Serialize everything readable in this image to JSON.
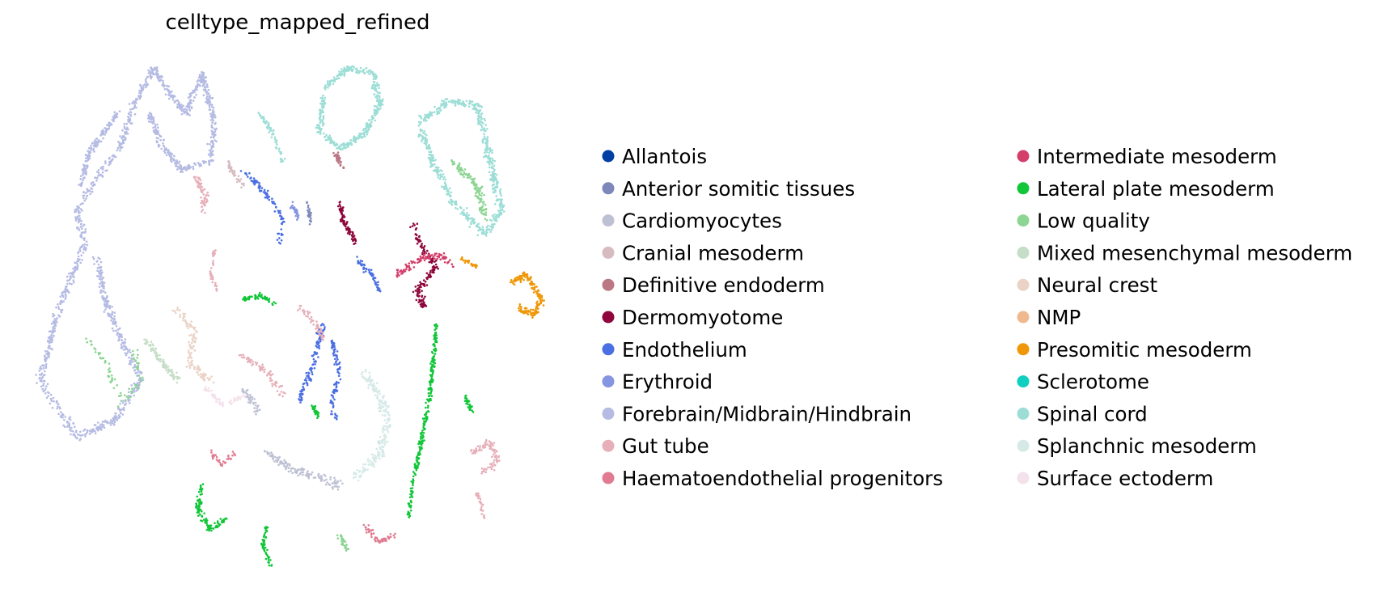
{
  "chart_data": {
    "type": "scatter",
    "title": "celltype_mapped_refined",
    "xlabel": "",
    "ylabel": "",
    "axes_visible": false,
    "grid": false,
    "legend_placement": "right",
    "legend_columns": 2,
    "categories": [
      {
        "name": "Allantois",
        "color": "#023fa5"
      },
      {
        "name": "Anterior somitic tissues",
        "color": "#7d87b9"
      },
      {
        "name": "Cardiomyocytes",
        "color": "#bec1d4"
      },
      {
        "name": "Cranial mesoderm",
        "color": "#d6bcc0"
      },
      {
        "name": "Definitive endoderm",
        "color": "#bb7784"
      },
      {
        "name": "Dermomyotome",
        "color": "#8e063b"
      },
      {
        "name": "Endothelium",
        "color": "#4a6fe3"
      },
      {
        "name": "Erythroid",
        "color": "#8595e1"
      },
      {
        "name": "Forebrain/Midbrain/Hindbrain",
        "color": "#b5bbe3"
      },
      {
        "name": "Gut tube",
        "color": "#e6afb9"
      },
      {
        "name": "Haematoendothelial progenitors",
        "color": "#e07b91"
      },
      {
        "name": "Intermediate mesoderm",
        "color": "#d33f6a"
      },
      {
        "name": "Lateral plate mesoderm",
        "color": "#11c638"
      },
      {
        "name": "Low quality",
        "color": "#8dd593"
      },
      {
        "name": "Mixed mesenchymal mesoderm",
        "color": "#c6dec7"
      },
      {
        "name": "Neural crest",
        "color": "#ead3c6"
      },
      {
        "name": "NMP",
        "color": "#f0b98d"
      },
      {
        "name": "Presomitic mesoderm",
        "color": "#ef9708"
      },
      {
        "name": "Sclerotome",
        "color": "#0fcfc0"
      },
      {
        "name": "Spinal cord",
        "color": "#9cded6"
      },
      {
        "name": "Splanchnic mesoderm",
        "color": "#d5eae7"
      },
      {
        "name": "Surface ectoderm",
        "color": "#f3e1eb"
      }
    ]
  }
}
